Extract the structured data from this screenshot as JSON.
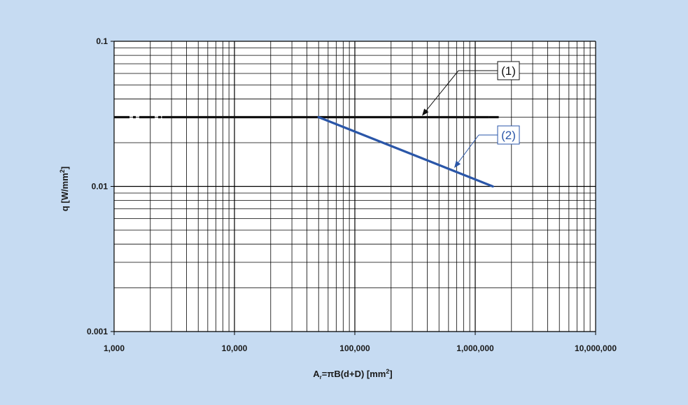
{
  "chart_data": {
    "type": "line",
    "xscale": "log",
    "yscale": "log",
    "xlim": [
      1000,
      10000000
    ],
    "ylim": [
      0.001,
      0.1
    ],
    "grid": true,
    "x_tick_labels": [
      "1,000",
      "10,000",
      "100,000",
      "1,000,000",
      "10,000,000"
    ],
    "y_tick_labels": [
      "0.1",
      "0.01",
      "0.001"
    ],
    "ylabel_main": "q [W/mm",
    "ylabel_sup": "2",
    "ylabel_end": "]",
    "xlabel_a": "A",
    "xlabel_sub": "r",
    "xlabel_main": "=πB(d+D) [mm",
    "xlabel_sup": "2",
    "xlabel_end": "]",
    "series": [
      {
        "label": "(1)",
        "color": "#111111",
        "x": [
          1000,
          1600000
        ],
        "y": [
          0.03,
          0.03
        ],
        "dashed_segments": [
          [
            1000,
            2500
          ],
          [
            1300000,
            1600000
          ]
        ]
      },
      {
        "label": "(2)",
        "color": "#2a56a8",
        "x": [
          50000,
          1400000
        ],
        "y": [
          0.03,
          0.01
        ]
      }
    ]
  }
}
